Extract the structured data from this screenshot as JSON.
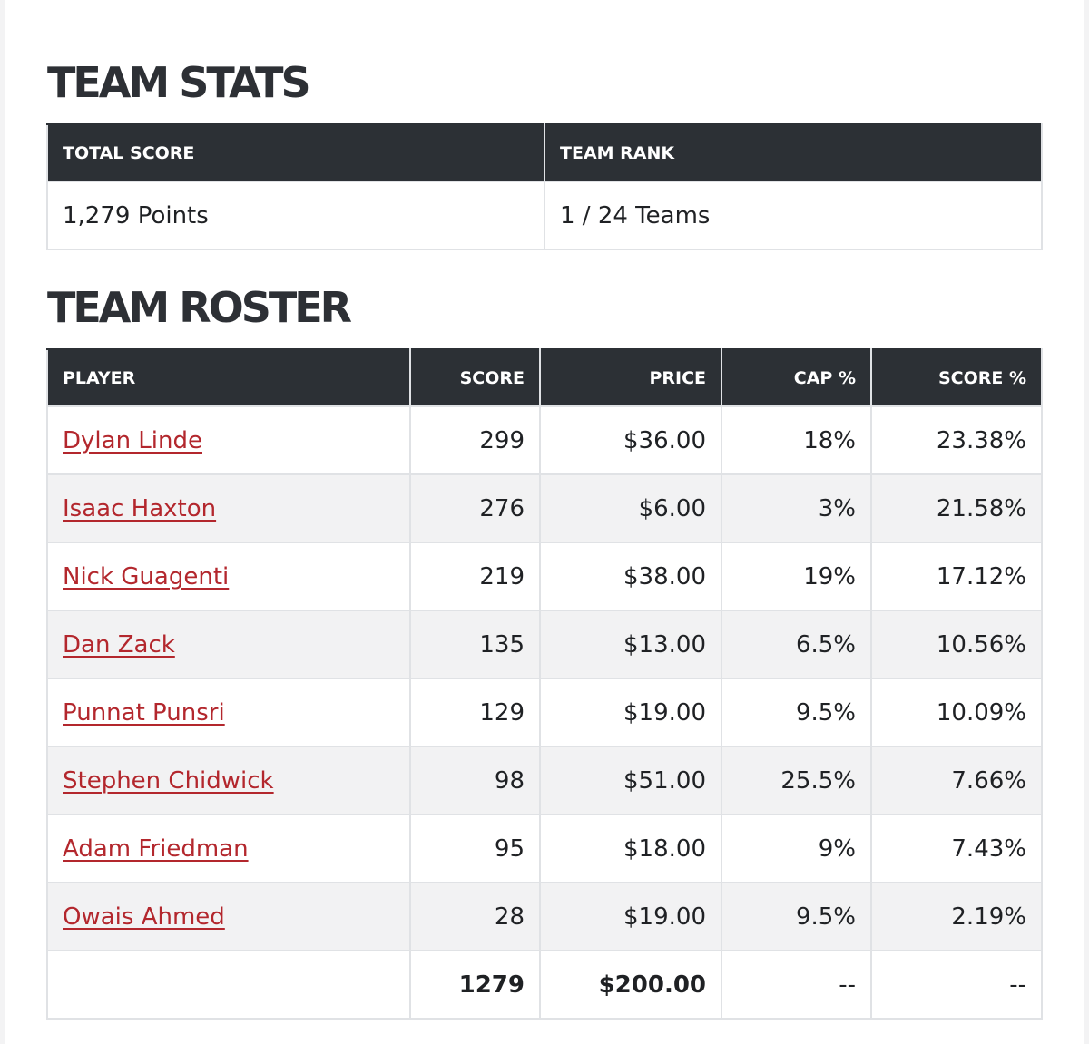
{
  "stats": {
    "title": "TEAM STATS",
    "headers": [
      "TOTAL SCORE",
      "TEAM RANK"
    ],
    "values": [
      "1,279 Points",
      "1 / 24 Teams"
    ]
  },
  "roster": {
    "title": "TEAM ROSTER",
    "headers": [
      "PLAYER",
      "SCORE",
      "PRICE",
      "CAP %",
      "SCORE %"
    ],
    "rows": [
      {
        "player": "Dylan Linde",
        "score": "299",
        "price": "$36.00",
        "cap": "18%",
        "score_pct": "23.38%"
      },
      {
        "player": "Isaac Haxton",
        "score": "276",
        "price": "$6.00",
        "cap": "3%",
        "score_pct": "21.58%"
      },
      {
        "player": "Nick Guagenti",
        "score": "219",
        "price": "$38.00",
        "cap": "19%",
        "score_pct": "17.12%"
      },
      {
        "player": "Dan Zack",
        "score": "135",
        "price": "$13.00",
        "cap": "6.5%",
        "score_pct": "10.56%"
      },
      {
        "player": "Punnat Punsri",
        "score": "129",
        "price": "$19.00",
        "cap": "9.5%",
        "score_pct": "10.09%"
      },
      {
        "player": "Stephen Chidwick",
        "score": "98",
        "price": "$51.00",
        "cap": "25.5%",
        "score_pct": "7.66%"
      },
      {
        "player": "Adam Friedman",
        "score": "95",
        "price": "$18.00",
        "cap": "9%",
        "score_pct": "7.43%"
      },
      {
        "player": "Owais Ahmed",
        "score": "28",
        "price": "$19.00",
        "cap": "9.5%",
        "score_pct": "2.19%"
      }
    ],
    "totals": {
      "player": "",
      "score": "1279",
      "price": "$200.00",
      "cap": "--",
      "score_pct": "--"
    }
  },
  "colors": {
    "header_bg": "#2c3035",
    "link": "#b3272d",
    "zebra": "#f2f2f3"
  }
}
